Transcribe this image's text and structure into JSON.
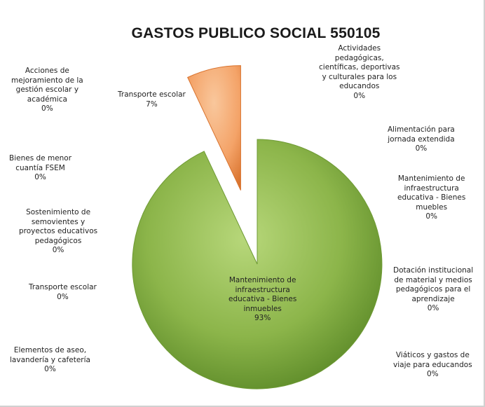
{
  "chart_data": {
    "type": "pie",
    "title": "GASTOS PUBLICO SOCIAL 550105",
    "colors": {
      "main": "#8cb54a",
      "main_dark": "#5c8a28",
      "main_light": "#b7d77a",
      "exploded": "#f4a368",
      "exploded_dark": "#d9732e"
    },
    "slices": [
      {
        "name": "Mantenimiento de\ninfraestructura\neducativa - Bienes\ninmuebles",
        "percent_label": "93%",
        "value": 93,
        "exploded": false
      },
      {
        "name": "Transporte escolar",
        "percent_label": "7%",
        "value": 7,
        "exploded": true
      },
      {
        "name": "Actividades\npedagógicas,\ncientíficas, deportivas\ny culturales para los\neducandos",
        "percent_label": "0%",
        "value": 0
      },
      {
        "name": "Alimentación para\njornada extendida",
        "percent_label": "0%",
        "value": 0
      },
      {
        "name": "Mantenimiento de\ninfraestructura\neducativa - Bienes\nmuebles",
        "percent_label": "0%",
        "value": 0
      },
      {
        "name": "Dotación institucional\nde material y medios\npedagógicos para el\naprendizaje",
        "percent_label": "0%",
        "value": 0
      },
      {
        "name": "Viáticos y gastos de\nviaje para educandos",
        "percent_label": "0%",
        "value": 0
      },
      {
        "name": "Elementos de aseo,\nlavandería y cafetería",
        "percent_label": "0%",
        "value": 0
      },
      {
        "name": "Transporte escolar",
        "percent_label": "0%",
        "value": 0
      },
      {
        "name": "Sostenimiento de\nsemovientes y\nproyectos educativos\npedagógicos",
        "percent_label": "0%",
        "value": 0
      },
      {
        "name": "Bienes de menor\ncuantía FSEM",
        "percent_label": "0%",
        "value": 0
      },
      {
        "name": "Acciones de\nmejoramiento de la\ngestión escolar y\nacadémica",
        "percent_label": "0%",
        "value": 0
      }
    ]
  }
}
